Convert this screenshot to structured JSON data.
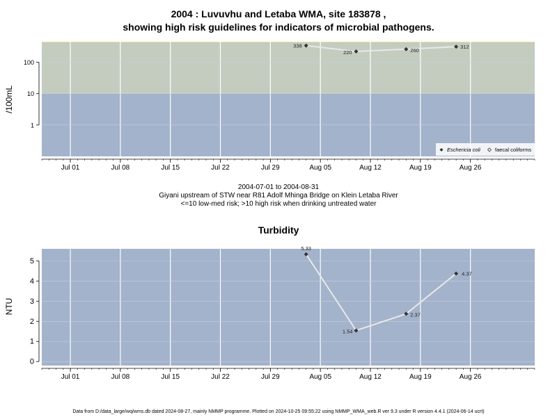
{
  "chart1": {
    "title_line1": "2004 : Luvuvhu and Letaba WMA, site 183878 ,",
    "title_line2": "showing high risk guidelines for indicators of microbial pathogens.",
    "ylabel": "/100mL",
    "colors": {
      "low_band": "#a3b3cb",
      "high_band": "#c4ccc0",
      "line": "#e8e8e8",
      "point": "#333333"
    },
    "legend": [
      "Eschericia coli",
      "faecal coliforms"
    ],
    "caption_line1": "2004-07-01 to 2004-08-31",
    "caption_line2": "Giyani upstream of STW near R81 Adolf Mhinga Bridge on Klein Letaba River",
    "caption_line3": "<=10 low-med risk; >10 high risk when drinking untreated water"
  },
  "chart2": {
    "title": "Turbidity",
    "ylabel": "NTU",
    "colors": {
      "background": "#a3b3cb",
      "line": "#e8e8e8",
      "point": "#333333"
    }
  },
  "footer": "Data from D:/data_large/wq/wms.db dated 2024-08-27, mainly NMMP programme. Plotted on 2024-10-25 09:55:22 using NMMP_WMA_web.R ver 9.3 under R version 4.4.1 (2024-06-14 ucrt)",
  "chart_data": [
    {
      "type": "line",
      "title": "2004 : Luvuvhu and Letaba WMA, site 183878 , showing high risk guidelines for indicators of microbial pathogens.",
      "ylabel": "/100mL",
      "yscale": "log",
      "ytick_labels": [
        "1",
        "10",
        "100"
      ],
      "yticks": [
        1,
        10,
        100
      ],
      "ylim": [
        0.1,
        450
      ],
      "xlim": [
        "2004-06-27",
        "2004-09-04"
      ],
      "xtick_labels": [
        "Jul 01",
        "Jul 08",
        "Jul 15",
        "Jul 22",
        "Jul 29",
        "Aug 05",
        "Aug 12",
        "Aug 19",
        "Aug 26"
      ],
      "xticks": [
        "2004-07-01",
        "2004-07-08",
        "2004-07-15",
        "2004-07-22",
        "2004-07-29",
        "2004-08-05",
        "2004-08-12",
        "2004-08-19",
        "2004-08-26"
      ],
      "bands": [
        {
          "from": 0.1,
          "to": 10,
          "label": "low-med risk"
        },
        {
          "from": 10,
          "to": 450,
          "label": "high risk"
        }
      ],
      "series": [
        {
          "name": "Eschericia coli",
          "x": [
            "2004-08-03",
            "2004-08-10",
            "2004-08-17",
            "2004-08-24"
          ],
          "values": [
            338,
            220,
            260,
            312
          ]
        }
      ],
      "legend": [
        "Eschericia coli",
        "faecal coliforms"
      ],
      "legend_position": "bottom-right"
    },
    {
      "type": "line",
      "title": "Turbidity",
      "ylabel": "NTU",
      "ytick_labels": [
        "0",
        "1",
        "2",
        "3",
        "4",
        "5"
      ],
      "yticks": [
        0,
        1,
        2,
        3,
        4,
        5
      ],
      "ylim": [
        -0.2,
        5.6
      ],
      "xlim": [
        "2004-06-27",
        "2004-09-04"
      ],
      "xtick_labels": [
        "Jul 01",
        "Jul 08",
        "Jul 15",
        "Jul 22",
        "Jul 29",
        "Aug 05",
        "Aug 12",
        "Aug 19",
        "Aug 26"
      ],
      "xticks": [
        "2004-07-01",
        "2004-07-08",
        "2004-07-15",
        "2004-07-22",
        "2004-07-29",
        "2004-08-05",
        "2004-08-12",
        "2004-08-19",
        "2004-08-26"
      ],
      "series": [
        {
          "x": [
            "2004-08-03",
            "2004-08-10",
            "2004-08-17",
            "2004-08-24"
          ],
          "values": [
            5.33,
            1.54,
            2.37,
            4.37
          ],
          "labels": [
            "5.33",
            "1.54",
            "2.37",
            "4.37"
          ]
        }
      ]
    }
  ]
}
